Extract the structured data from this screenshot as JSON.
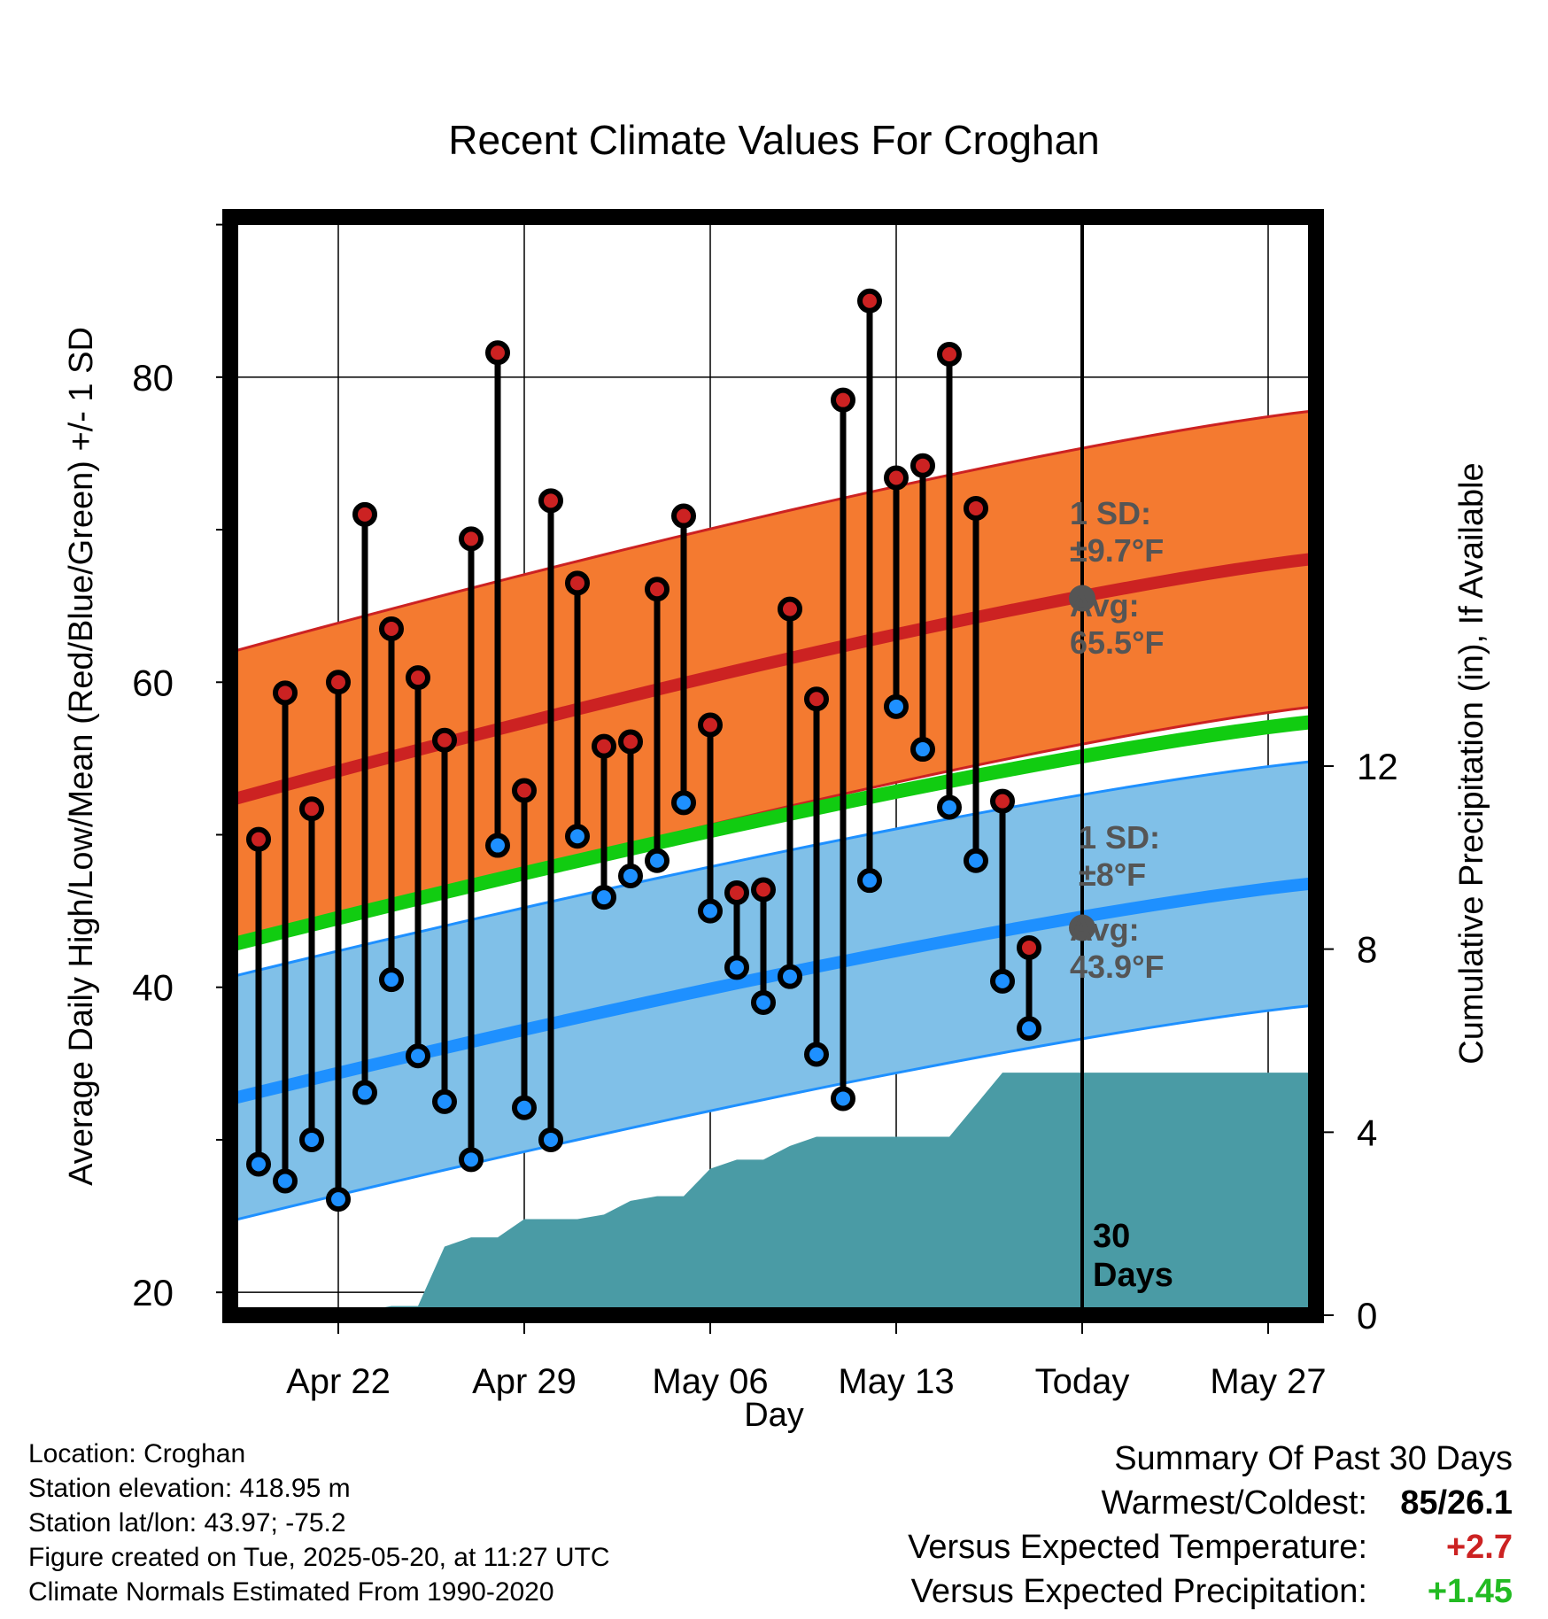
{
  "chart_data": {
    "type": "line",
    "title": "Recent Climate Values For Croghan",
    "xlabel": "Day",
    "ylabel": "Average Daily High/Low/Mean (Red/Blue/Green) +/- 1 SD",
    "y2label": "Cumulative Precipitation (in), If Available",
    "x_tick_labels": [
      "Apr 22",
      "Apr 29",
      "May 06",
      "May 13",
      "Today",
      "May 27"
    ],
    "y_ticks": [
      20,
      40,
      60,
      80
    ],
    "y2_ticks": [
      0,
      4,
      8,
      12
    ],
    "ylim": [
      18.5,
      90.5
    ],
    "y2lim": [
      0,
      24
    ],
    "grid": true,
    "today_marker": "30\nDays",
    "dates": [
      "Apr 19",
      "Apr 20",
      "Apr 21",
      "Apr 22",
      "Apr 23",
      "Apr 24",
      "Apr 25",
      "Apr 26",
      "Apr 27",
      "Apr 28",
      "Apr 29",
      "Apr 30",
      "May 01",
      "May 02",
      "May 03",
      "May 04",
      "May 05",
      "May 06",
      "May 07",
      "May 08",
      "May 09",
      "May 10",
      "May 11",
      "May 12",
      "May 13",
      "May 14",
      "May 15",
      "May 16",
      "May 17",
      "May 18",
      "May 19"
    ],
    "series": [
      {
        "name": "High",
        "values": [
          49.7,
          59.3,
          51.7,
          60.0,
          71.0,
          63.5,
          60.3,
          56.2,
          69.4,
          81.6,
          52.9,
          71.9,
          66.5,
          55.8,
          56.1,
          66.1,
          70.9,
          57.2,
          46.2,
          46.4,
          64.8,
          58.9,
          78.5,
          85.0,
          73.4,
          74.2,
          81.5,
          71.4,
          52.2,
          42.6,
          null
        ]
      },
      {
        "name": "Low",
        "values": [
          28.4,
          27.3,
          30.0,
          26.1,
          33.1,
          40.5,
          35.5,
          32.5,
          28.7,
          49.3,
          32.1,
          30.0,
          49.9,
          45.9,
          47.3,
          48.3,
          52.1,
          45.0,
          41.3,
          39.0,
          40.7,
          35.6,
          32.7,
          47.0,
          58.4,
          55.6,
          51.8,
          48.3,
          40.4,
          37.3,
          null
        ]
      },
      {
        "name": "Cumulative Precipitation",
        "values": [
          0.0,
          0.0,
          0.1,
          0.1,
          0.1,
          0.2,
          0.2,
          1.5,
          1.7,
          1.7,
          2.1,
          2.1,
          2.1,
          2.2,
          2.5,
          2.6,
          2.6,
          3.2,
          3.4,
          3.4,
          3.7,
          3.9,
          3.9,
          3.9,
          3.9,
          3.9,
          3.9,
          4.6,
          5.3,
          5.3,
          5.3
        ]
      }
    ],
    "normals": {
      "start": "Apr 18",
      "end": "May 30",
      "high_mean": [
        52.3,
        68.3
      ],
      "high_sd": 9.7,
      "mean": [
        42.8,
        57.6
      ],
      "low_mean": [
        32.7,
        47.0
      ],
      "low_sd": 8,
      "today_high_avg": 65.5,
      "today_low_avg": 43.9
    },
    "annotations": {
      "high_sd_label": "1 SD:",
      "high_sd_value": "±9.7°F",
      "high_avg_label": "Avg:",
      "high_avg_value": "65.5°F",
      "low_sd_label": "1 SD:",
      "low_sd_value": "±8°F",
      "low_avg_label": "Avg:",
      "low_avg_value": "43.9°F"
    },
    "colors": {
      "high": "#cc2222",
      "high_band": "#f47a30",
      "mean": "#11cc11",
      "low": "#1e90ff",
      "low_band": "#80c0e8",
      "precip": "#4a9ba5",
      "annotation": "#555555"
    }
  },
  "info": {
    "location": "Location: Croghan",
    "elevation": "Station elevation: 418.95 m",
    "latlon": "Station lat/lon: 43.97; -75.2",
    "created": "Figure created on Tue, 2025-05-20, at 11:27 UTC",
    "normals": "Climate Normals Estimated From 1990-2020"
  },
  "summary": {
    "title": "Summary Of Past 30 Days",
    "warmest_label": "Warmest/Coldest:",
    "warmest_value": "85/26.1",
    "temp_label": "Versus Expected Temperature:",
    "temp_value": "+2.7",
    "temp_color": "#cc2222",
    "precip_label": "Versus Expected Precipitation:",
    "precip_value": "+1.45",
    "precip_color": "#22bb22"
  }
}
